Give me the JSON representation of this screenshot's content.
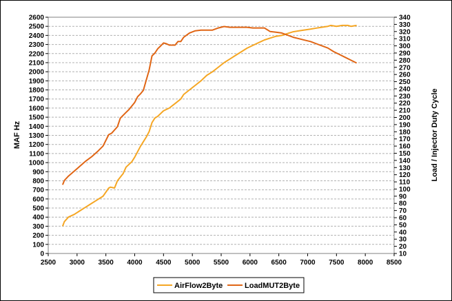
{
  "chart_data": {
    "type": "line",
    "xlabel": "",
    "ylabel": "MAF Hz",
    "y2label": "Load / Injector Duty Cycle",
    "xlim": [
      2500,
      8500
    ],
    "ylim": [
      0,
      2600
    ],
    "y2lim": [
      10,
      340
    ],
    "x_ticks": [
      2500,
      3000,
      3500,
      4000,
      4500,
      5000,
      5500,
      6000,
      6500,
      7000,
      7500,
      8000,
      8500
    ],
    "y_ticks": [
      0,
      100,
      200,
      300,
      400,
      500,
      600,
      700,
      800,
      900,
      1000,
      1100,
      1200,
      1300,
      1400,
      1500,
      1600,
      1700,
      1800,
      1900,
      2000,
      2100,
      2200,
      2300,
      2400,
      2500,
      2600
    ],
    "y2_ticks": [
      10,
      20,
      30,
      40,
      50,
      60,
      70,
      80,
      90,
      100,
      110,
      120,
      130,
      140,
      150,
      160,
      170,
      180,
      190,
      200,
      210,
      220,
      230,
      240,
      250,
      260,
      270,
      280,
      290,
      300,
      310,
      320,
      330,
      340
    ],
    "grid": "horizontal dashed",
    "legend_position": "bottom",
    "series": [
      {
        "name": "AirFlow2Byte",
        "axis": "left",
        "color": "#f5a623",
        "x": [
          2750,
          2780,
          2850,
          2950,
          3050,
          3150,
          3250,
          3350,
          3450,
          3550,
          3580,
          3650,
          3700,
          3800,
          3850,
          3950,
          4000,
          4100,
          4200,
          4250,
          4300,
          4350,
          4400,
          4500,
          4600,
          4700,
          4800,
          4850,
          4950,
          5050,
          5150,
          5250,
          5350,
          5450,
          5550,
          5650,
          5750,
          5850,
          5950,
          6050,
          6150,
          6250,
          6350,
          6450,
          6550,
          6650,
          6750,
          6850,
          6950,
          7050,
          7150,
          7250,
          7350,
          7400,
          7500,
          7600,
          7700,
          7750,
          7850
        ],
        "y": [
          300,
          350,
          400,
          430,
          470,
          510,
          550,
          590,
          630,
          720,
          730,
          720,
          800,
          880,
          950,
          1010,
          1060,
          1180,
          1280,
          1340,
          1440,
          1490,
          1510,
          1570,
          1600,
          1650,
          1700,
          1750,
          1800,
          1850,
          1900,
          1960,
          2000,
          2050,
          2100,
          2140,
          2180,
          2220,
          2260,
          2290,
          2320,
          2350,
          2370,
          2390,
          2400,
          2420,
          2440,
          2450,
          2460,
          2470,
          2480,
          2490,
          2500,
          2510,
          2500,
          2510,
          2510,
          2500,
          2510
        ]
      },
      {
        "name": "LoadMUT2Byte",
        "axis": "right",
        "color": "#e06514",
        "x": [
          2750,
          2780,
          2850,
          2950,
          3050,
          3150,
          3250,
          3350,
          3450,
          3550,
          3600,
          3700,
          3750,
          3850,
          3900,
          4000,
          4050,
          4100,
          4150,
          4200,
          4250,
          4300,
          4350,
          4400,
          4450,
          4500,
          4550,
          4600,
          4650,
          4700,
          4750,
          4800,
          4850,
          4950,
          5050,
          5150,
          5250,
          5350,
          5450,
          5550,
          5650,
          5750,
          5850,
          5950,
          6050,
          6150,
          6250,
          6350,
          6450,
          6550,
          6650,
          6750,
          6850,
          6950,
          7050,
          7150,
          7250,
          7350,
          7450,
          7550,
          7650,
          7750,
          7850
        ],
        "y": [
          106,
          112,
          118,
          125,
          132,
          139,
          145,
          152,
          160,
          176,
          178,
          187,
          199,
          207,
          211,
          221,
          229,
          233,
          238,
          252,
          266,
          286,
          290,
          296,
          300,
          304,
          303,
          301,
          301,
          301,
          306,
          306,
          312,
          318,
          321,
          322,
          322,
          322,
          325,
          327,
          326,
          326,
          326,
          326,
          325,
          325,
          325,
          320,
          319,
          318,
          315,
          312,
          310,
          308,
          306,
          303,
          300,
          297,
          292,
          288,
          284,
          280,
          276
        ]
      }
    ]
  }
}
